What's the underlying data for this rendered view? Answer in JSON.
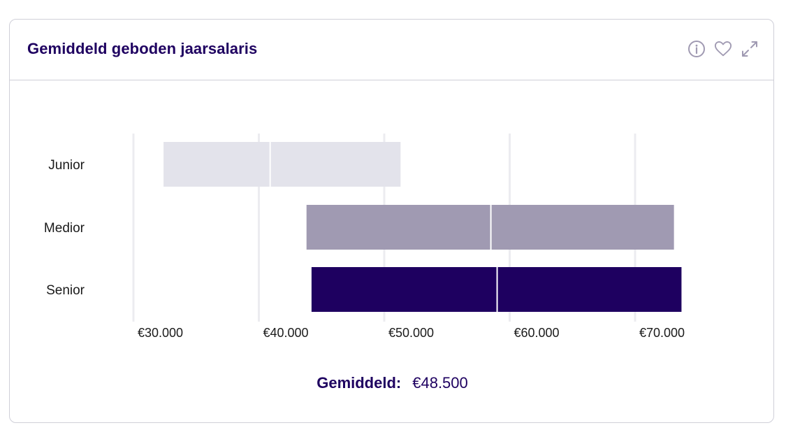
{
  "card": {
    "title": "Gemiddeld geboden jaarsalaris",
    "icons": [
      "info-icon",
      "heart-icon",
      "expand-icon"
    ]
  },
  "average": {
    "label": "Gemiddeld:",
    "value": "€48.500"
  },
  "colors": {
    "title": "#1e0060",
    "junior": "#e3e3eb",
    "medior": "#a09ab2",
    "senior": "#1e0060",
    "grid": "#ececf0",
    "icon": "#a09ab2"
  },
  "chart_data": {
    "type": "bar",
    "orientation": "horizontal",
    "subtype": "floating-range-with-marker",
    "categories": [
      "Junior",
      "Medior",
      "Senior"
    ],
    "series": [
      {
        "values": [
          {
            "category": "Junior",
            "min": 32400,
            "marker": 40900,
            "max": 51300
          },
          {
            "category": "Medior",
            "min": 43800,
            "marker": 58500,
            "max": 73100
          },
          {
            "category": "Senior",
            "min": 44200,
            "marker": 59000,
            "max": 73700
          }
        ]
      }
    ],
    "xticks": [
      30000,
      40000,
      50000,
      60000,
      70000
    ],
    "xtick_labels": [
      "€30.000",
      "€40.000",
      "€50.000",
      "€60.000",
      "€70.000"
    ],
    "xlim": [
      30000,
      74000
    ],
    "grid": true,
    "title": "",
    "xlabel": "",
    "ylabel": ""
  }
}
